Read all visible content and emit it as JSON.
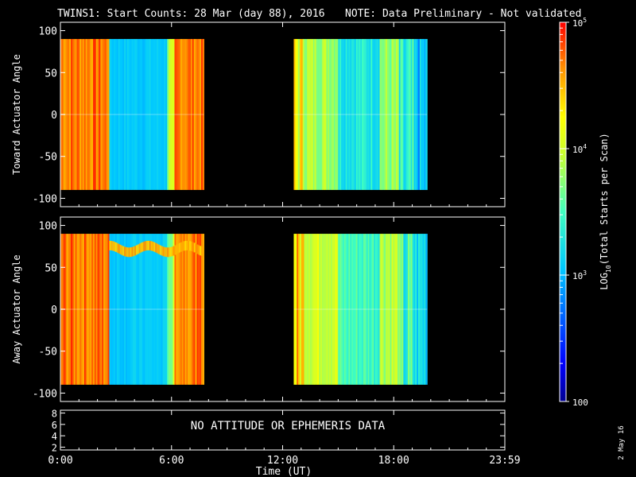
{
  "title": {
    "main": "TWINS1: Start Counts: 28 Mar (day  88), 2016",
    "note": "NOTE: Data Preliminary - Not validated",
    "note_color": "#ff2020"
  },
  "date_stamp": "2 May 16",
  "chart_data": [
    {
      "type": "heatmap",
      "name": "toward",
      "ylabel": "Toward Actuator Angle",
      "ylim": [
        -110,
        110
      ],
      "yticks": [
        "100",
        "50",
        "0",
        "-50",
        "-100"
      ],
      "ytick_values": [
        100,
        50,
        0,
        -50,
        -100
      ],
      "y_data_range": [
        -90,
        90
      ],
      "data_segments": [
        [
          0,
          7.75
        ],
        [
          12.6,
          19.8
        ]
      ],
      "x_range_hours": [
        0,
        24
      ]
    },
    {
      "type": "heatmap",
      "name": "away",
      "ylabel": "Away Actuator Angle",
      "ylim": [
        -110,
        110
      ],
      "yticks": [
        "100",
        "50",
        "0",
        "-50",
        "-100"
      ],
      "ytick_values": [
        100,
        50,
        0,
        -50,
        -100
      ],
      "y_data_range": [
        -90,
        90
      ],
      "data_segments": [
        [
          0,
          7.75
        ],
        [
          12.6,
          19.8
        ]
      ],
      "x_range_hours": [
        0,
        24
      ]
    },
    {
      "type": "line",
      "name": "ephemeris",
      "yticks": [
        "8",
        "6",
        "4",
        "2"
      ],
      "ytick_values": [
        8,
        6,
        4,
        2
      ],
      "ylim": [
        1.5,
        8.5
      ],
      "message": "NO ATTITUDE OR EPHEMERIS DATA"
    }
  ],
  "x_axis": {
    "label": "Time (UT)",
    "ticks": [
      "0:00",
      "6:00",
      "12:00",
      "18:00",
      "23:59"
    ],
    "tick_hours": [
      0,
      6,
      12,
      18,
      24
    ]
  },
  "colorbar": {
    "label_prefix": "LOG",
    "label_sub": "10",
    "label_suffix": "(Total Starts per Scan)",
    "scale": "log",
    "range": [
      100,
      100000
    ],
    "ticks": [
      {
        "value": 100000,
        "base": "10",
        "exp": "5"
      },
      {
        "value": 10000,
        "base": "10",
        "exp": "4"
      },
      {
        "value": 1000,
        "base": "10",
        "exp": "3"
      },
      {
        "value": 100,
        "base": "100",
        "exp": ""
      }
    ]
  }
}
